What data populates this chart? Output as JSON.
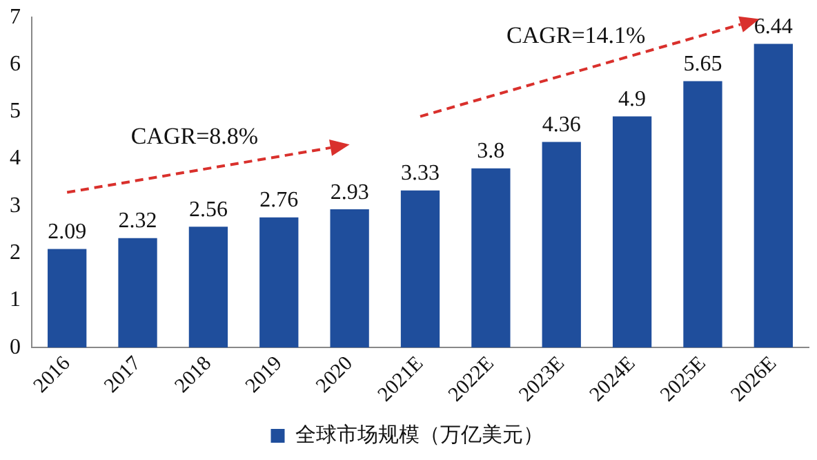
{
  "chart_data": {
    "type": "bar",
    "categories": [
      "2016",
      "2017",
      "2018",
      "2019",
      "2020",
      "2021E",
      "2022E",
      "2023E",
      "2024E",
      "2025E",
      "2026E"
    ],
    "series": [
      {
        "name": "全球市场规模（万亿美元）",
        "color": "#1f4e9c",
        "values": [
          2.09,
          2.32,
          2.56,
          2.76,
          2.93,
          3.33,
          3.8,
          4.36,
          4.9,
          5.65,
          6.44
        ]
      }
    ],
    "ylim": [
      0,
      7
    ],
    "yticks": [
      0,
      1,
      2,
      3,
      4,
      5,
      6,
      7
    ],
    "grid": false,
    "legend": "bottom",
    "data_labels": true,
    "annotations": [
      "CAGR=8.8%",
      "CAGR=14.1%"
    ]
  }
}
